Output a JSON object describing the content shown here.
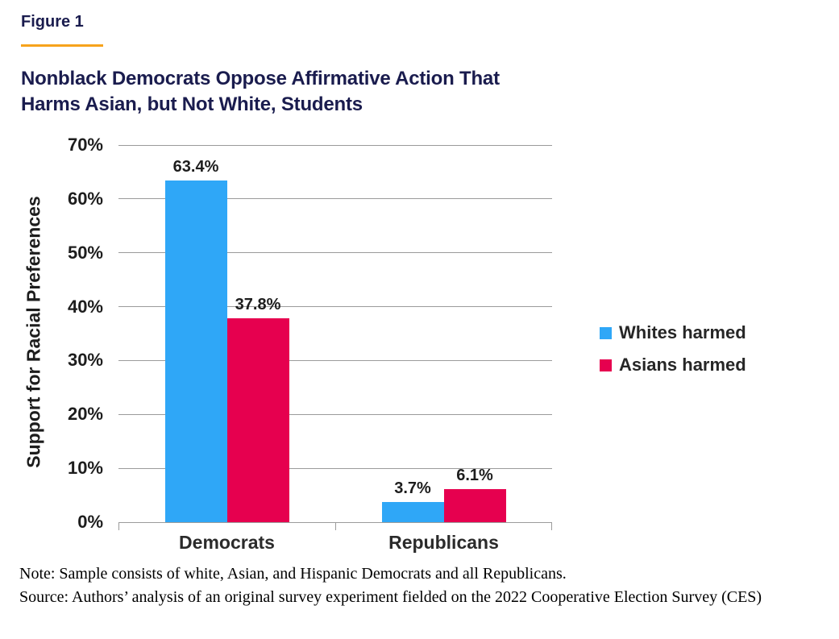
{
  "figure": {
    "label": "Figure 1",
    "title_line1": "Nonblack Democrats Oppose Affirmative Action That",
    "title_line2": "Harms Asian, but Not White, Students"
  },
  "chart_data": {
    "type": "bar",
    "categories": [
      "Democrats",
      "Republicans"
    ],
    "series": [
      {
        "name": "Whites harmed",
        "color": "#2fa7f7",
        "values": [
          63.4,
          3.7
        ]
      },
      {
        "name": "Asians harmed",
        "color": "#e6004f",
        "values": [
          37.8,
          6.1
        ]
      }
    ],
    "data_labels": [
      [
        "63.4%",
        "3.7%"
      ],
      [
        "37.8%",
        "6.1%"
      ]
    ],
    "title": "Nonblack Democrats Oppose Affirmative Action That Harms Asian, but Not White, Students",
    "xlabel": "",
    "ylabel": "Support for Racial Preferences",
    "ylim": [
      0,
      70
    ],
    "yticks": [
      0,
      10,
      20,
      30,
      40,
      50,
      60,
      70
    ],
    "ytick_suffix": "%",
    "grid": true,
    "legend_position": "right"
  },
  "footer": {
    "note": "Note: Sample consists of white, Asian, and Hispanic Democrats and all Republicans.",
    "source": "Source: Authors’ analysis of an original survey experiment fielded on the 2022 Cooperative Election Survey (CES)"
  },
  "theme": {
    "navy": "#1a1c4e",
    "orange": "#f7a31c",
    "grid": "#9b9b9b",
    "text": "#1d1d1d"
  }
}
